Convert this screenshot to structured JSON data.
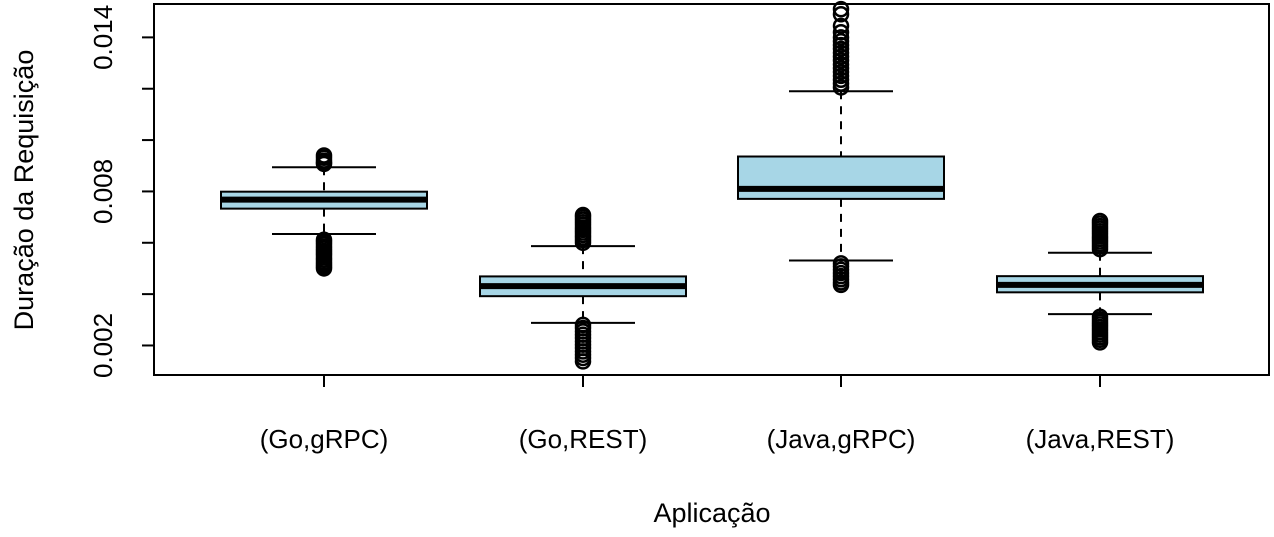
{
  "chart_data": {
    "type": "boxplot",
    "title": "",
    "xlabel": "Aplicação",
    "ylabel": "Duração da Requisição",
    "ylim": [
      0.00085,
      0.0153
    ],
    "yticks": [
      0.002,
      0.004,
      0.006,
      0.008,
      0.01,
      0.012,
      0.014
    ],
    "ytick_labels": [
      "0.002",
      "",
      "",
      "0.008",
      "",
      "",
      "0.014"
    ],
    "box_color": "#a7d6e6",
    "categories": [
      "(Go,gRPC)",
      "(Go,REST)",
      "(Java,gRPC)",
      "(Java,REST)"
    ],
    "boxes": [
      {
        "label": "(Go,gRPC)",
        "whisker_low": 0.00634,
        "q1": 0.00733,
        "median": 0.00768,
        "q3": 0.00799,
        "whisker_high": 0.00894,
        "outliers": [
          0.00907,
          0.00912,
          0.0092,
          0.00931,
          0.0094,
          0.00612,
          0.00604,
          0.00595,
          0.00586,
          0.00577,
          0.00568,
          0.0056,
          0.00551,
          0.00542,
          0.00533,
          0.00524,
          0.00516,
          0.00508,
          0.005
        ]
      },
      {
        "label": "(Go,REST)",
        "whisker_low": 0.00288,
        "q1": 0.00392,
        "median": 0.00431,
        "q3": 0.00469,
        "whisker_high": 0.00587,
        "outliers": [
          0.006,
          0.0061,
          0.0062,
          0.0063,
          0.0064,
          0.0065,
          0.0066,
          0.0067,
          0.0068,
          0.0069,
          0.007,
          0.00708,
          0.0028,
          0.00268,
          0.00255,
          0.00242,
          0.00229,
          0.00216,
          0.00203,
          0.0019,
          0.00177,
          0.00164,
          0.00151,
          0.00138
        ]
      },
      {
        "label": "(Java,gRPC)",
        "whisker_low": 0.00531,
        "q1": 0.00771,
        "median": 0.0081,
        "q3": 0.00936,
        "whisker_high": 0.0119,
        "outliers": [
          0.01205,
          0.0122,
          0.01235,
          0.0125,
          0.01265,
          0.0128,
          0.01295,
          0.0131,
          0.01325,
          0.0134,
          0.01355,
          0.0137,
          0.01385,
          0.014,
          0.0142,
          0.01445,
          0.0149,
          0.0151,
          0.0052,
          0.00508,
          0.00495,
          0.00482,
          0.0047,
          0.00458,
          0.00446,
          0.00436
        ]
      },
      {
        "label": "(Java,REST)",
        "whisker_low": 0.00322,
        "q1": 0.00407,
        "median": 0.00436,
        "q3": 0.0047,
        "whisker_high": 0.00561,
        "outliers": [
          0.00575,
          0.00585,
          0.00595,
          0.00605,
          0.00615,
          0.00625,
          0.00635,
          0.00645,
          0.00655,
          0.00665,
          0.00675,
          0.00685,
          0.00312,
          0.00302,
          0.00292,
          0.00282,
          0.00272,
          0.00262,
          0.00252,
          0.00242,
          0.00232,
          0.00222,
          0.00212
        ]
      }
    ]
  }
}
